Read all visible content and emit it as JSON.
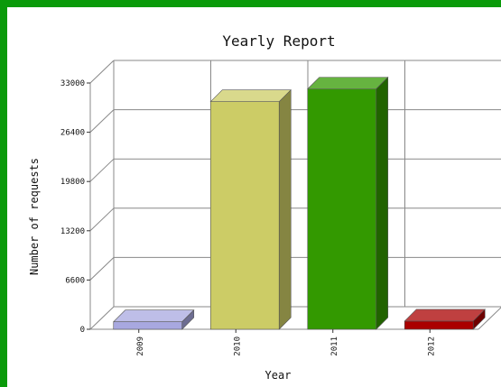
{
  "chart_data": {
    "type": "bar",
    "title": "Yearly Report",
    "xlabel": "Year",
    "ylabel": "Number of requests",
    "categories": [
      "2009",
      "2010",
      "2011",
      "2012"
    ],
    "values": [
      1000,
      30500,
      32200,
      1100
    ],
    "yticks": [
      0,
      6600,
      13200,
      19800,
      26400,
      33000
    ],
    "ylim": [
      0,
      33000
    ],
    "colors": [
      "#a8a8e0",
      "#cccc66",
      "#339900",
      "#aa0000"
    ],
    "grid": true,
    "legend": "none"
  },
  "frame_color": "#0a9a0a"
}
